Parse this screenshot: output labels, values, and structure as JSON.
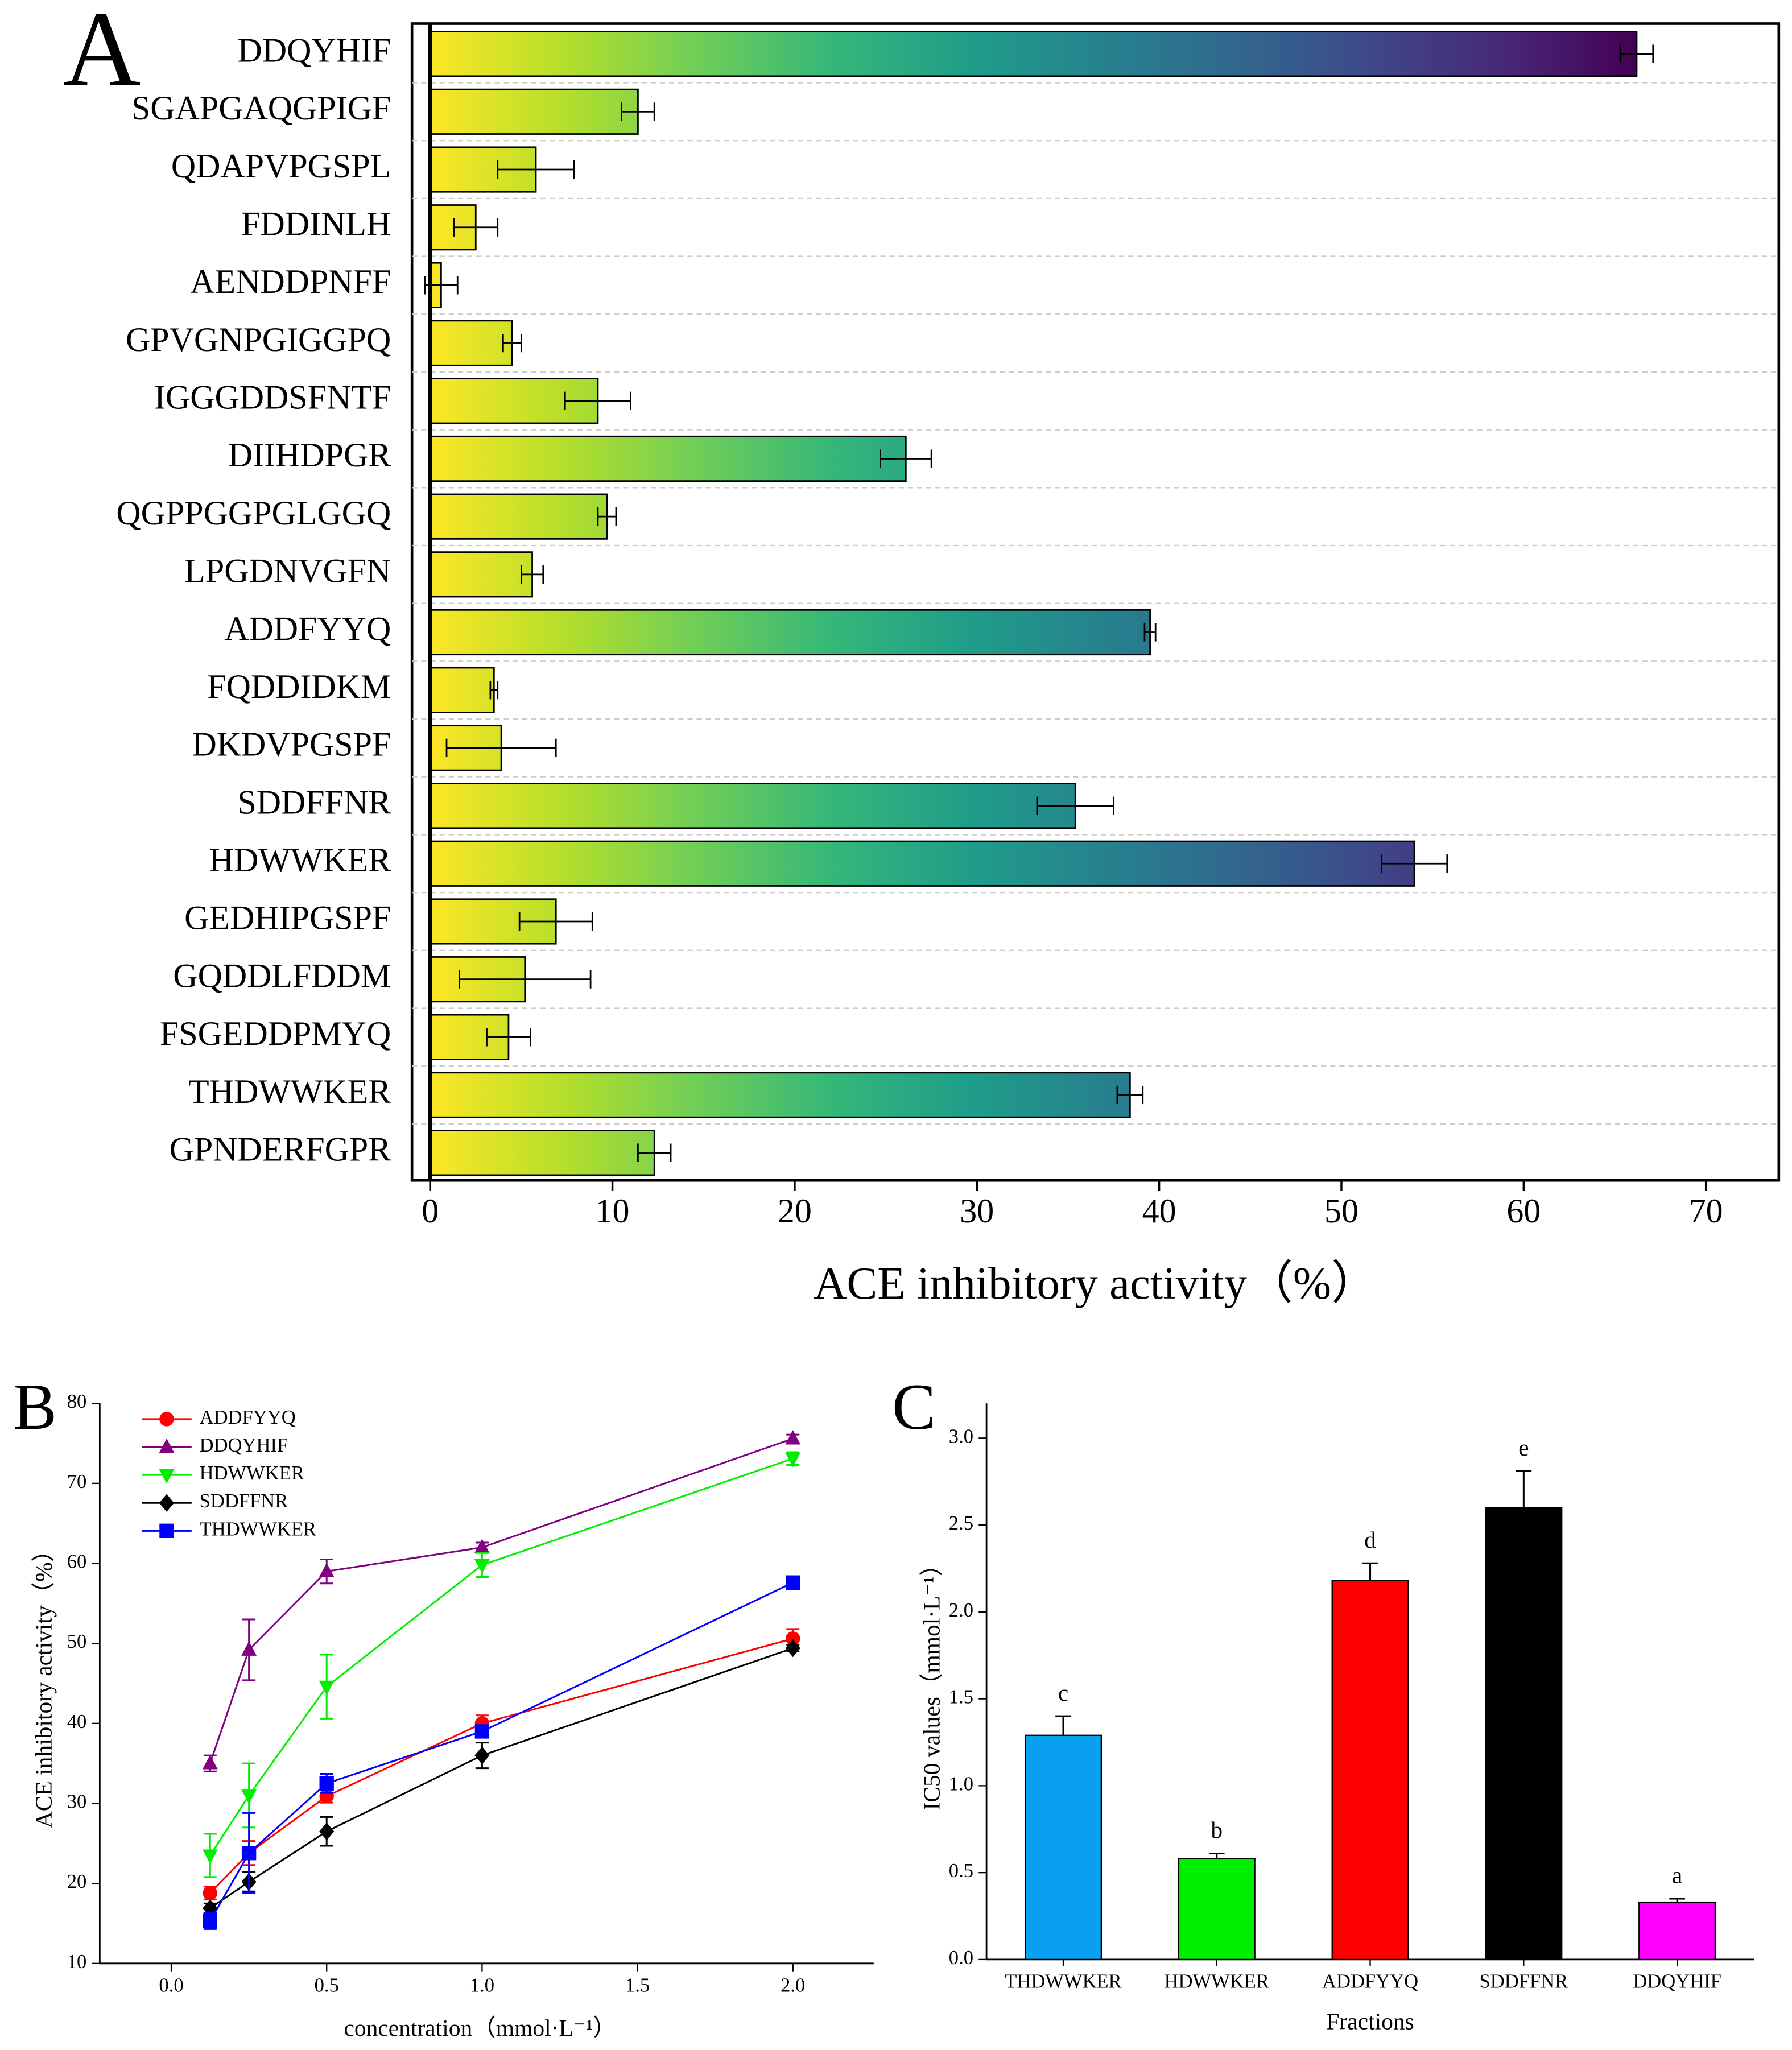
{
  "chart_data": [
    {
      "type": "bar",
      "orientation": "horizontal",
      "panel_label": "A",
      "xlabel": "ACE inhibitory activity（%）",
      "categories": [
        "DDQYHIF",
        "SGAPGAQGPIGF",
        "QDAPVPGSPL",
        "FDDINLH",
        "AENDDPNFF",
        "GPVGNPGIGGPQ",
        "IGGGDDSFNTF",
        "DIIHDPGR",
        "QGPPGGPGLGGQ",
        "LPGDNVGFN",
        "ADDFYYQ",
        "FQDDIDKM",
        "DKDVPGSPF",
        "SDDFFNR",
        "HDWWKER",
        "GEDHIPGSPF",
        "GQDDLFDDM",
        "FSGEDDPMYQ",
        "THDWWKER",
        "GPNDERFGPR"
      ],
      "values": [
        66.2,
        11.4,
        5.8,
        2.5,
        0.6,
        4.5,
        9.2,
        26.1,
        9.7,
        5.6,
        39.5,
        3.5,
        3.9,
        35.4,
        54.0,
        6.9,
        5.2,
        4.3,
        38.4,
        12.3
      ],
      "errors": [
        0.9,
        0.9,
        2.1,
        1.2,
        0.9,
        0.5,
        1.8,
        1.4,
        0.5,
        0.6,
        0.3,
        0.2,
        3.0,
        2.1,
        1.8,
        2.0,
        3.6,
        1.2,
        0.7,
        0.9
      ],
      "gradient": [
        "#fde725",
        "#b5de2b",
        "#6ece58",
        "#35b779",
        "#1f9e89",
        "#26828e",
        "#31688e",
        "#3e4989",
        "#482878",
        "#440154"
      ],
      "xlim": [
        -1,
        74
      ],
      "xticks": [
        0,
        10,
        20,
        30,
        40,
        50,
        60,
        70
      ],
      "grid": true
    },
    {
      "type": "line",
      "panel_label": "B",
      "xlabel": "concentration（mmol·L⁻¹）",
      "ylabel": "ACE inhibitory activity（%）",
      "x": [
        0.125,
        0.25,
        0.5,
        1.0,
        2.0
      ],
      "series": [
        {
          "name": "ADDFYYQ",
          "color": "#ff0000",
          "marker": "circle",
          "values": [
            18.8,
            23.8,
            30.9,
            40.0,
            50.6
          ],
          "errors": [
            0.8,
            1.5,
            0.8,
            1.0,
            1.2
          ]
        },
        {
          "name": "DDQYHIF",
          "color": "#800080",
          "marker": "triangle-up",
          "values": [
            35.0,
            49.2,
            59.0,
            62.0,
            75.6
          ],
          "errors": [
            1.0,
            3.8,
            1.5,
            0.6,
            0.5
          ]
        },
        {
          "name": "HDWWKER",
          "color": "#00ee00",
          "marker": "triangle-down",
          "values": [
            23.5,
            31.0,
            44.6,
            59.8,
            73.1
          ],
          "errors": [
            2.7,
            4.0,
            4.0,
            1.5,
            0.8
          ]
        },
        {
          "name": "SDDFFNR",
          "color": "#000000",
          "marker": "diamond",
          "values": [
            16.9,
            20.2,
            26.5,
            36.0,
            49.4
          ],
          "errors": [
            0.6,
            1.2,
            1.8,
            1.6,
            0.4
          ]
        },
        {
          "name": "THDWWKER",
          "color": "#0000ff",
          "marker": "square",
          "values": [
            15.3,
            23.8,
            32.5,
            39.0,
            57.6
          ],
          "errors": [
            1.0,
            5.0,
            1.2,
            0.5,
            0.8
          ]
        }
      ],
      "xlim": [
        -0.23,
        2.26
      ],
      "xticks": [
        {
          "value": 0,
          "label": "0.0"
        },
        0.5,
        {
          "value": 1,
          "label": "1.0"
        },
        1.5,
        {
          "value": 2,
          "label": "2.0"
        }
      ],
      "ylim": [
        10,
        80
      ],
      "yticks": [
        10,
        20,
        30,
        40,
        50,
        60,
        70,
        80
      ],
      "legend": "upper left"
    },
    {
      "type": "bar",
      "orientation": "vertical",
      "panel_label": "C",
      "xlabel": "Fractions",
      "ylabel": "IC50 values（mmol·L⁻¹）",
      "categories": [
        "THDWWKER",
        "HDWWKER",
        "ADDFYYQ",
        "SDDFFNR",
        "DDQYHIF"
      ],
      "values": [
        1.29,
        0.58,
        2.18,
        2.6,
        0.33
      ],
      "errors": [
        0.11,
        0.03,
        0.1,
        0.21,
        0.02
      ],
      "annotations": [
        "c",
        "b",
        "d",
        "e",
        "a"
      ],
      "colors": [
        "#0aa0f0",
        "#00ee00",
        "#ff0000",
        "#000000",
        "#ff00ff"
      ],
      "ylim": [
        0,
        3.2
      ],
      "yticks": [
        {
          "value": 0,
          "label": "0.0"
        },
        0.5,
        {
          "value": 1,
          "label": "1.0"
        },
        1.5,
        {
          "value": 2,
          "label": "2.0"
        },
        2.5,
        {
          "value": 3,
          "label": "3.0"
        }
      ]
    }
  ]
}
